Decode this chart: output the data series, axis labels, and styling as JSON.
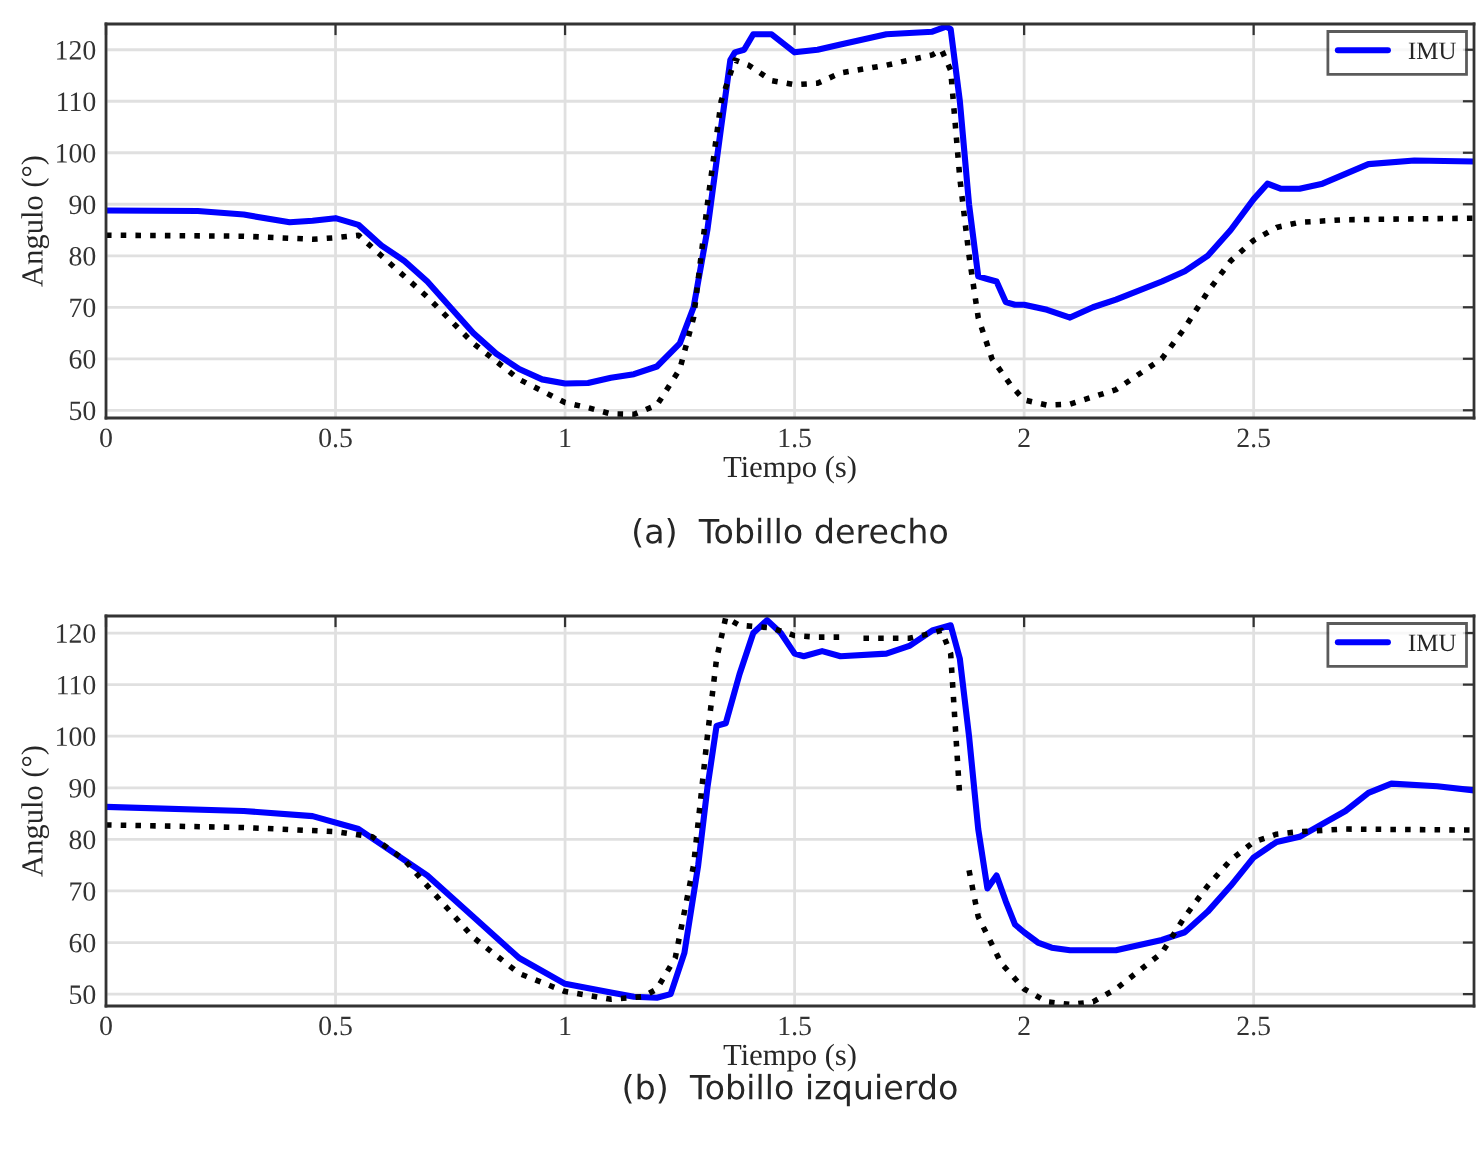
{
  "chart_data": [
    {
      "type": "line",
      "xlabel": "Tiempo (s)",
      "ylabel": "Angulo (°)",
      "annotations": [
        "(a)  Tobillo derecho"
      ],
      "xlim": [
        0,
        2.98
      ],
      "xticks": [
        0,
        0.5,
        1,
        1.5,
        2,
        2.5
      ],
      "ylim": [
        48.5,
        125
      ],
      "yticks": [
        50,
        60,
        70,
        80,
        90,
        100,
        110,
        120
      ],
      "grid": true,
      "legend": "top right",
      "series": [
        {
          "name": "IMU",
          "color": "#0000ff",
          "line_style": "solid",
          "x": [
            0,
            0.2,
            0.3,
            0.4,
            0.45,
            0.5,
            0.55,
            0.6,
            0.65,
            0.7,
            0.75,
            0.8,
            0.85,
            0.9,
            0.95,
            1.0,
            1.05,
            1.1,
            1.15,
            1.2,
            1.25,
            1.28,
            1.31,
            1.34,
            1.36,
            1.37,
            1.39,
            1.41,
            1.45,
            1.5,
            1.55,
            1.6,
            1.7,
            1.8,
            1.83,
            1.84,
            1.86,
            1.88,
            1.9,
            1.92,
            1.94,
            1.96,
            1.98,
            2.0,
            2.05,
            2.1,
            2.15,
            2.2,
            2.3,
            2.35,
            2.4,
            2.45,
            2.5,
            2.53,
            2.56,
            2.6,
            2.65,
            2.75,
            2.85,
            2.98
          ],
          "values": [
            88.8,
            88.7,
            88,
            86.5,
            86.8,
            87.3,
            86,
            82,
            79,
            75,
            70,
            65,
            61,
            58,
            56,
            55.2,
            55.3,
            56.3,
            57,
            58.5,
            63,
            70,
            85,
            105,
            118,
            119.5,
            120,
            123,
            123,
            119.5,
            120,
            121,
            123,
            123.5,
            124.5,
            124,
            110,
            90,
            76,
            75.5,
            75,
            71,
            70.5,
            70.5,
            69.5,
            68,
            70,
            71.5,
            75,
            77,
            80,
            85,
            91,
            94,
            93,
            93,
            94,
            97.8,
            98.5,
            98.3
          ]
        },
        {
          "color": "#000000",
          "line_style": "dotted",
          "x": [
            0,
            0.3,
            0.45,
            0.5,
            0.55,
            0.6,
            0.7,
            0.8,
            0.9,
            1.0,
            1.05,
            1.1,
            1.15,
            1.2,
            1.25,
            1.28,
            1.31,
            1.34,
            1.37,
            1.4,
            1.45,
            1.5,
            1.55,
            1.6,
            1.7,
            1.8,
            1.82,
            1.84,
            1.86,
            1.88,
            1.9,
            1.93,
            1.97,
            2.0,
            2.05,
            2.1,
            2.2,
            2.3,
            2.35,
            2.4,
            2.45,
            2.5,
            2.55,
            2.6,
            2.7,
            2.98
          ],
          "values": [
            84,
            83.8,
            83.2,
            83.5,
            84,
            80,
            72,
            63,
            56,
            51.5,
            50.5,
            49.3,
            49.2,
            51,
            58,
            68,
            90,
            110,
            118,
            117,
            114,
            113.2,
            113.5,
            115.5,
            117,
            119,
            120,
            116,
            95,
            80,
            68,
            60,
            55,
            52,
            51,
            51.2,
            54,
            60,
            66,
            73,
            79,
            83,
            85.5,
            86.5,
            87,
            87.3
          ]
        }
      ]
    },
    {
      "type": "line",
      "xlabel": "Tiempo (s)",
      "ylabel": "Angulo (°)",
      "annotations": [
        "(b)  Tobillo izquierdo"
      ],
      "xlim": [
        0,
        2.98
      ],
      "xticks": [
        0,
        0.5,
        1,
        1.5,
        2,
        2.5
      ],
      "ylim": [
        47.7,
        123.3
      ],
      "yticks": [
        50,
        60,
        70,
        80,
        90,
        100,
        110,
        120
      ],
      "grid": true,
      "legend": "top right",
      "series": [
        {
          "name": "IMU",
          "color": "#0000ff",
          "line_style": "solid",
          "x": [
            0,
            0.3,
            0.45,
            0.55,
            0.6,
            0.65,
            0.7,
            0.8,
            0.9,
            1.0,
            1.1,
            1.15,
            1.2,
            1.23,
            1.26,
            1.29,
            1.31,
            1.33,
            1.35,
            1.38,
            1.41,
            1.44,
            1.47,
            1.5,
            1.52,
            1.56,
            1.6,
            1.7,
            1.75,
            1.8,
            1.84,
            1.86,
            1.88,
            1.9,
            1.92,
            1.94,
            1.96,
            1.98,
            2.0,
            2.03,
            2.06,
            2.1,
            2.2,
            2.3,
            2.35,
            2.4,
            2.45,
            2.5,
            2.55,
            2.6,
            2.7,
            2.75,
            2.8,
            2.9,
            2.98
          ],
          "values": [
            86.3,
            85.5,
            84.5,
            82,
            79,
            76,
            73,
            65,
            57,
            52,
            50.3,
            49.5,
            49.3,
            50,
            58,
            75,
            90,
            102,
            102.5,
            112,
            120,
            122.5,
            120,
            116,
            115.5,
            116.5,
            115.5,
            116,
            117.5,
            120.5,
            121.5,
            115,
            100,
            82,
            70.5,
            73,
            68,
            63.5,
            62,
            60,
            59,
            58.5,
            58.5,
            60.5,
            62,
            66,
            71,
            76.5,
            79.5,
            80.5,
            85.5,
            89,
            90.8,
            90.3,
            89.5
          ]
        },
        {
          "color": "#000000",
          "line_style": "dotted",
          "x": [
            0,
            0.3,
            0.5,
            0.58,
            0.65,
            0.7,
            0.8,
            0.9,
            1.0,
            1.1,
            1.17,
            1.2,
            1.24,
            1.28,
            1.31,
            1.33,
            1.35,
            1.38,
            1.45,
            1.5,
            1.55,
            1.6,
            1.62,
            1.65,
            1.75,
            1.8,
            1.82,
            1.84,
            1.86,
            1.87,
            1.88,
            1.9,
            1.95,
            2.0,
            2.05,
            2.1,
            2.15,
            2.2,
            2.3,
            2.35,
            2.4,
            2.45,
            2.5,
            2.55,
            2.6,
            2.7,
            2.98
          ],
          "values": [
            82.8,
            82.3,
            81.5,
            80.5,
            76,
            71,
            61,
            54,
            50.5,
            49,
            49.5,
            51,
            57,
            75,
            100,
            115,
            123,
            121.5,
            121,
            119.5,
            119.2,
            119.2,
            null,
            119,
            119,
            120,
            120.5,
            116,
            88,
            null,
            74,
            65,
            56,
            51,
            48.5,
            48,
            48.5,
            51,
            58,
            65,
            71,
            76,
            79.5,
            81,
            81.5,
            82,
            81.8
          ]
        }
      ]
    }
  ]
}
